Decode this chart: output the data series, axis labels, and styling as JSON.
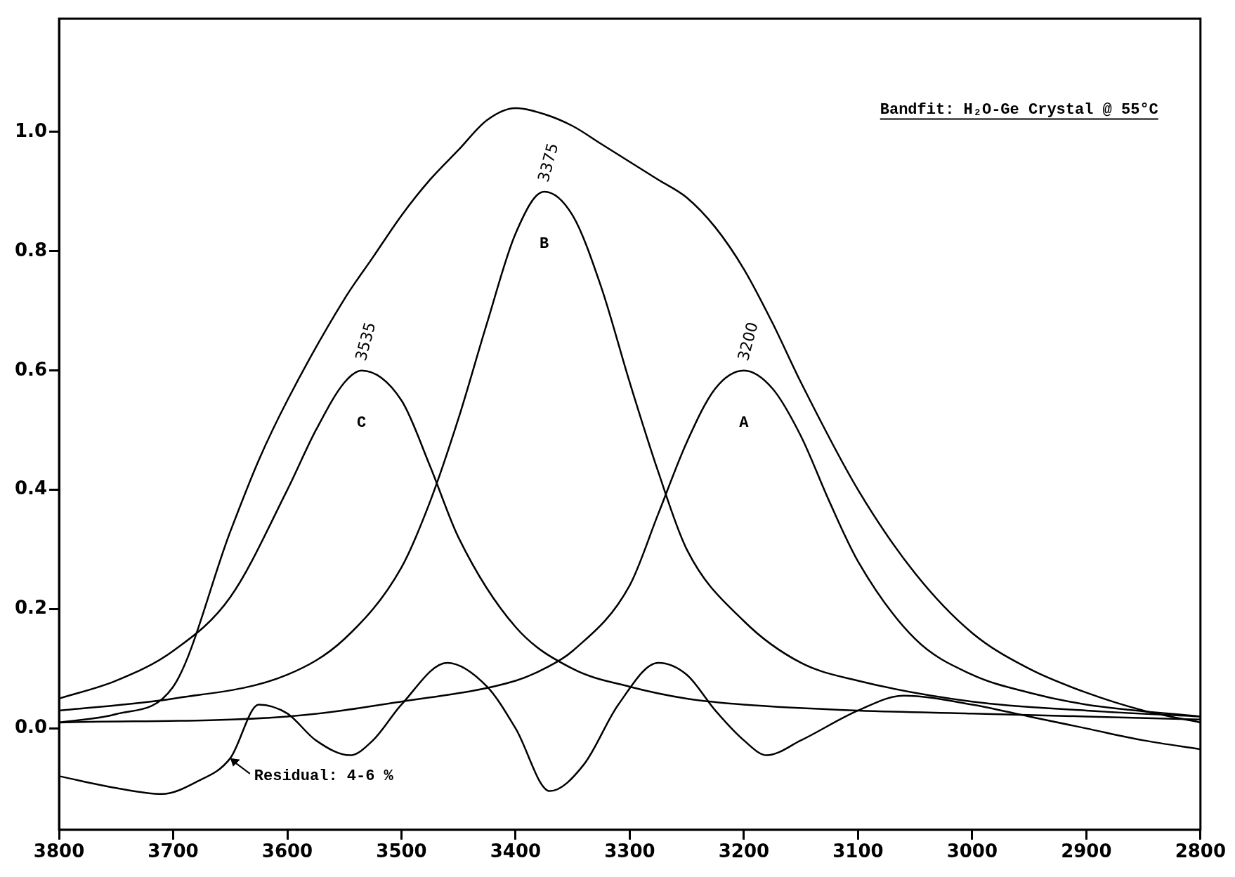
{
  "chart_data": {
    "type": "line",
    "title": "Bandfit: H₂O-Ge Crystal @ 55°C",
    "xlim": [
      3800,
      2800
    ],
    "xticks": [
      3800,
      3700,
      3600,
      3500,
      3400,
      3300,
      3200,
      3100,
      3000,
      2900,
      2800
    ],
    "ylim": [
      -0.17,
      1.19
    ],
    "yticks": [
      {
        "value": 0,
        "label": "0.0"
      },
      {
        "value": 0.2,
        "label": "0.2"
      },
      {
        "value": 0.4,
        "label": "0.4"
      },
      {
        "value": 0.6,
        "label": "0.6"
      },
      {
        "value": 0.8,
        "label": "0.8"
      },
      {
        "value": 1,
        "label": "1.0"
      }
    ],
    "marker": "none",
    "legend": false,
    "series": [
      {
        "color": "#000000",
        "x": [
          3800,
          3750,
          3700,
          3650,
          3625,
          3600,
          3550,
          3525,
          3500,
          3475,
          3450,
          3425,
          3400,
          3375,
          3350,
          3325,
          3300,
          3275,
          3250,
          3225,
          3200,
          3175,
          3150,
          3100,
          3050,
          3000,
          2950,
          2900,
          2850,
          2800
        ],
        "values": [
          0.01,
          0.024,
          0.07,
          0.33,
          0.45,
          0.55,
          0.72,
          0.79,
          0.86,
          0.92,
          0.97,
          1.02,
          1.04,
          1.03,
          1.01,
          0.98,
          0.95,
          0.92,
          0.89,
          0.84,
          0.77,
          0.68,
          0.58,
          0.4,
          0.26,
          0.16,
          0.1,
          0.06,
          0.03,
          0.01
        ]
      },
      {
        "name": "C",
        "color": "#000000",
        "x": [
          3800,
          3750,
          3700,
          3650,
          3600,
          3575,
          3550,
          3535,
          3500,
          3475,
          3450,
          3400,
          3350,
          3300,
          3250,
          3200,
          3100,
          3000,
          2900,
          2800
        ],
        "values": [
          0.05,
          0.08,
          0.13,
          0.22,
          0.4,
          0.5,
          0.58,
          0.6,
          0.55,
          0.44,
          0.32,
          0.17,
          0.1,
          0.07,
          0.05,
          0.04,
          0.03,
          0.025,
          0.02,
          0.015
        ]
      },
      {
        "name": "B",
        "color": "#000000",
        "x": [
          3800,
          3700,
          3600,
          3550,
          3500,
          3475,
          3450,
          3425,
          3400,
          3375,
          3350,
          3325,
          3300,
          3275,
          3250,
          3200,
          3150,
          3100,
          3000,
          2900,
          2800
        ],
        "values": [
          0.03,
          0.05,
          0.09,
          0.15,
          0.27,
          0.38,
          0.52,
          0.68,
          0.83,
          0.9,
          0.86,
          0.74,
          0.58,
          0.43,
          0.3,
          0.18,
          0.11,
          0.08,
          0.045,
          0.03,
          0.02
        ]
      },
      {
        "name": "A",
        "color": "#000000",
        "x": [
          3800,
          3600,
          3500,
          3400,
          3375,
          3350,
          3300,
          3275,
          3250,
          3225,
          3200,
          3175,
          3150,
          3125,
          3100,
          3050,
          3000,
          2950,
          2900,
          2800
        ],
        "values": [
          0.01,
          0.02,
          0.045,
          0.08,
          0.1,
          0.13,
          0.24,
          0.36,
          0.48,
          0.57,
          0.6,
          0.57,
          0.49,
          0.38,
          0.28,
          0.15,
          0.09,
          0.06,
          0.04,
          0.02
        ]
      },
      {
        "color": "#000000",
        "x": [
          3800,
          3750,
          3710,
          3680,
          3650,
          3625,
          3600,
          3575,
          3545,
          3525,
          3500,
          3460,
          3425,
          3400,
          3370,
          3340,
          3310,
          3275,
          3250,
          3225,
          3200,
          3180,
          3150,
          3100,
          3060,
          3000,
          2950,
          2900,
          2850,
          2800
        ],
        "values": [
          -0.08,
          -0.1,
          -0.11,
          -0.09,
          -0.05,
          0.04,
          0.025,
          -0.02,
          -0.045,
          -0.02,
          0.04,
          0.11,
          0.07,
          0,
          -0.105,
          -0.06,
          0.04,
          0.11,
          0.09,
          0.03,
          -0.02,
          -0.045,
          -0.02,
          0.03,
          0.055,
          0.04,
          0.02,
          0,
          -0.02,
          -0.035
        ]
      }
    ],
    "annotations": [
      {
        "text": "3535",
        "x": 3535,
        "y": 0.6
      },
      {
        "text": "3375",
        "x": 3375,
        "y": 0.9
      },
      {
        "text": "3200",
        "x": 3200,
        "y": 0.6
      },
      {
        "text": "Residual: 4-6 %",
        "x": 3650,
        "y": -0.05
      }
    ]
  }
}
